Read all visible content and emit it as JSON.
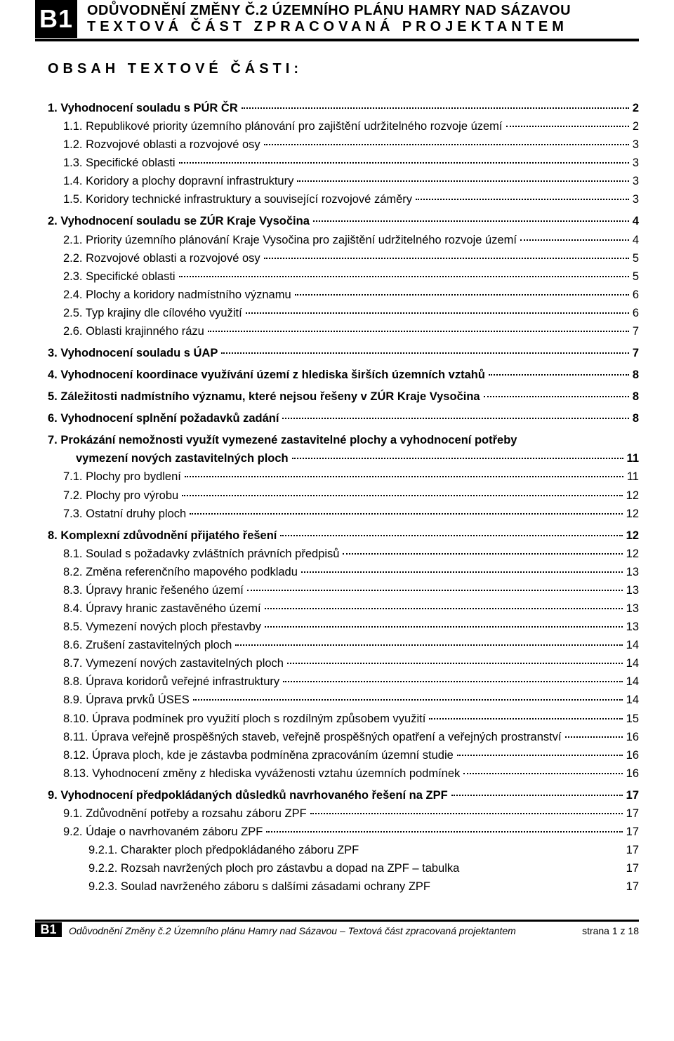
{
  "header": {
    "badge": "B1",
    "title_line1": "ODŮVODNĚNÍ ZMĚNY Č.2 ÚZEMNÍHO PLÁNU HAMRY NAD SÁZAVOU",
    "title_line2": "TEXTOVÁ ČÁST ZPRACOVANÁ PROJEKTANTEM"
  },
  "section_title": "OBSAH TEXTOVÉ ČÁSTI:",
  "toc": [
    {
      "lvl": "top",
      "label": "1. Vyhodnocení souladu s PÚR ČR",
      "page": "2"
    },
    {
      "lvl": "sub",
      "label": "1.1. Republikové priority územního plánování pro zajištění udržitelného rozvoje území",
      "page": "2"
    },
    {
      "lvl": "sub",
      "label": "1.2. Rozvojové oblasti a rozvojové osy",
      "page": "3"
    },
    {
      "lvl": "sub",
      "label": "1.3. Specifické oblasti",
      "page": "3"
    },
    {
      "lvl": "sub",
      "label": "1.4. Koridory a plochy dopravní infrastruktury",
      "page": "3"
    },
    {
      "lvl": "sub",
      "label": "1.5. Koridory technické infrastruktury a související rozvojové záměry",
      "page": "3",
      "gap_after": true
    },
    {
      "lvl": "top",
      "label": "2. Vyhodnocení souladu se ZÚR Kraje Vysočina",
      "page": "4"
    },
    {
      "lvl": "sub",
      "label": "2.1. Priority územního plánování Kraje Vysočina pro zajištění udržitelného rozvoje území",
      "page": "4"
    },
    {
      "lvl": "sub",
      "label": "2.2. Rozvojové oblasti a rozvojové osy",
      "page": "5"
    },
    {
      "lvl": "sub",
      "label": "2.3. Specifické oblasti",
      "page": "5"
    },
    {
      "lvl": "sub",
      "label": "2.4. Plochy a koridory nadmístního významu",
      "page": "6"
    },
    {
      "lvl": "sub",
      "label": "2.5. Typ krajiny dle cílového využití",
      "page": "6"
    },
    {
      "lvl": "sub",
      "label": "2.6. Oblasti krajinného rázu",
      "page": "7",
      "gap_after": true
    },
    {
      "lvl": "top",
      "label": "3. Vyhodnocení souladu s ÚAP",
      "page": "7",
      "gap_after": true
    },
    {
      "lvl": "top",
      "label": "4. Vyhodnocení koordinace využívání území z hlediska širších územních vztahů",
      "page": "8",
      "gap_after": true
    },
    {
      "lvl": "top",
      "label": "5. Záležitosti nadmístního významu, které nejsou řešeny v ZÚR Kraje Vysočina",
      "page": "8",
      "gap_after": true
    },
    {
      "lvl": "top",
      "label": "6. Vyhodnocení splnění požadavků zadání",
      "page": "8",
      "gap_after": true
    },
    {
      "lvl": "top",
      "label": "7. Prokázání nemožnosti využít vymezené zastavitelné plochy a vyhodnocení potřeby vymezení nových zastavitelných ploch",
      "page": "11",
      "wrap": true
    },
    {
      "lvl": "sub",
      "label": "7.1. Plochy pro bydlení",
      "page": "11"
    },
    {
      "lvl": "sub",
      "label": "7.2. Plochy pro výrobu",
      "page": "12"
    },
    {
      "lvl": "sub",
      "label": "7.3. Ostatní druhy ploch",
      "page": "12",
      "gap_after": true
    },
    {
      "lvl": "top",
      "label": "8. Komplexní zdůvodnění přijatého řešení",
      "page": "12"
    },
    {
      "lvl": "sub",
      "label": "8.1. Soulad s požadavky zvláštních právních předpisů",
      "page": "12"
    },
    {
      "lvl": "sub",
      "label": "8.2. Změna referenčního mapového podkladu",
      "page": "13"
    },
    {
      "lvl": "sub",
      "label": "8.3. Úpravy hranic řešeného území",
      "page": "13"
    },
    {
      "lvl": "sub",
      "label": "8.4. Úpravy hranic zastavěného území",
      "page": "13"
    },
    {
      "lvl": "sub",
      "label": "8.5. Vymezení nových ploch přestavby",
      "page": "13"
    },
    {
      "lvl": "sub",
      "label": "8.6. Zrušení zastavitelných ploch",
      "page": "14"
    },
    {
      "lvl": "sub",
      "label": "8.7. Vymezení nových zastavitelných ploch",
      "page": "14"
    },
    {
      "lvl": "sub",
      "label": "8.8. Úprava koridorů veřejné infrastruktury",
      "page": "14"
    },
    {
      "lvl": "sub",
      "label": "8.9. Úprava prvků ÚSES",
      "page": "14"
    },
    {
      "lvl": "sub",
      "label": "8.10. Úprava podmínek pro využití ploch s rozdílným způsobem využití",
      "page": "15"
    },
    {
      "lvl": "sub",
      "label": "8.11. Úprava veřejně prospěšných staveb, veřejně prospěšných opatření a veřejných prostranství",
      "page": "16"
    },
    {
      "lvl": "sub",
      "label": "8.12. Úprava ploch, kde je zástavba podmíněna zpracováním územní studie",
      "page": "16"
    },
    {
      "lvl": "sub",
      "label": "8.13. Vyhodnocení změny z hlediska vyváženosti vztahu územních podmínek",
      "page": "16",
      "gap_after": true
    },
    {
      "lvl": "top",
      "label": "9. Vyhodnocení předpokládaných důsledků navrhovaného řešení na ZPF",
      "page": "17"
    },
    {
      "lvl": "sub",
      "label": "9.1. Zdůvodnění potřeby a rozsahu záboru ZPF",
      "page": "17"
    },
    {
      "lvl": "sub",
      "label": "9.2. Údaje o navrhovaném záboru ZPF",
      "page": "17"
    },
    {
      "lvl": "sub2",
      "label": "9.2.1. Charakter ploch předpokládaného záboru ZPF",
      "page": "17",
      "nodots": true
    },
    {
      "lvl": "sub2",
      "label": "9.2.2. Rozsah navržených ploch pro zástavbu a dopad na ZPF – tabulka",
      "page": "17",
      "nodots": true
    },
    {
      "lvl": "sub2",
      "label": "9.2.3. Soulad navrženého záboru s dalšími zásadami ochrany ZPF",
      "page": "17",
      "nodots": true
    }
  ],
  "wrap_indent_label": "vymezení nových zastavitelných ploch",
  "footer": {
    "badge": "B1",
    "text": "Odůvodnění Změny č.2 Územního plánu Hamry nad Sázavou – Textová část zpracovaná projektantem",
    "page": "strana 1 z 18"
  }
}
